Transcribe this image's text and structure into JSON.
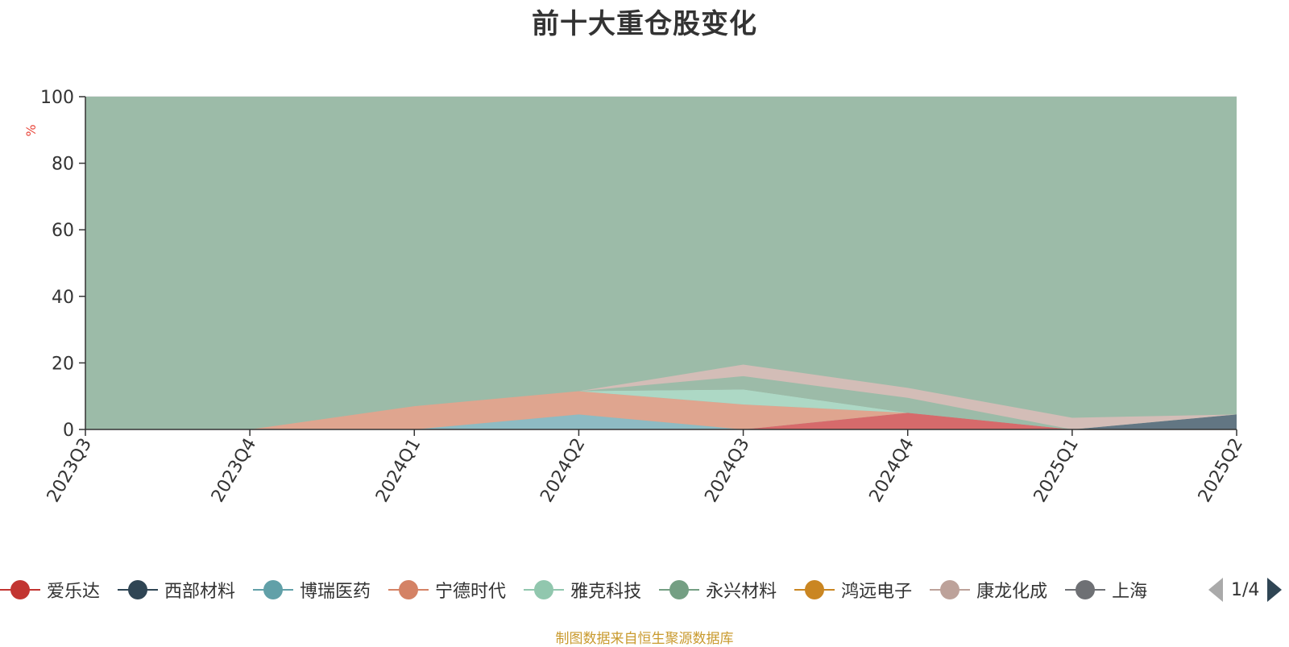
{
  "chart_data": {
    "type": "area",
    "title": "前十大重仓股变化",
    "ylabel": "%",
    "ylim": [
      0,
      100
    ],
    "yticks": [
      0,
      20,
      40,
      60,
      80,
      100
    ],
    "categories": [
      "2023Q3",
      "2023Q4",
      "2024Q1",
      "2024Q2",
      "2024Q3",
      "2024Q4",
      "2025Q1",
      "2025Q2"
    ],
    "grid": true,
    "legend_position": "bottom",
    "series": [
      {
        "name": "爱乐达",
        "color": "#d96567",
        "values": [
          0,
          0,
          0,
          0,
          0,
          5.0,
          0,
          0
        ]
      },
      {
        "name": "西部材料",
        "color": "#5f7281",
        "values": [
          0,
          0,
          0,
          0,
          0,
          0,
          0,
          4.5
        ]
      },
      {
        "name": "博瑞医药",
        "color": "#8dbbc4",
        "values": [
          0,
          0,
          0,
          4.5,
          0,
          0,
          0,
          0
        ]
      },
      {
        "name": "宁德时代",
        "color": "#e3a38d",
        "values": [
          0,
          0,
          7.0,
          7.0,
          7.5,
          0,
          0,
          0
        ]
      },
      {
        "name": "雅克科技",
        "color": "#aed9c6",
        "values": [
          0,
          0,
          0,
          0,
          4.5,
          0,
          0,
          0
        ]
      },
      {
        "name": "永兴材料",
        "color": "#9cbba8",
        "values": [
          0,
          0,
          0,
          0,
          4.0,
          4.5,
          0,
          0
        ]
      },
      {
        "name": "鸿远电子",
        "color": "#dcac58",
        "values": [
          0,
          0,
          0,
          0,
          0,
          0,
          0,
          0
        ]
      },
      {
        "name": "康龙化成",
        "color": "#d6bdb7",
        "values": [
          0,
          0,
          0,
          0,
          3.5,
          3.0,
          3.5,
          0
        ]
      },
      {
        "name": "上海",
        "color": "#999aa0",
        "values": [
          0,
          0,
          0,
          0,
          0,
          0,
          0,
          0
        ]
      }
    ]
  },
  "page": {
    "title": "前十大重仓股变化",
    "y_unit": "%",
    "source_note": "制图数据来自恒生聚源数据库"
  },
  "legend": {
    "items": [
      {
        "label": "爱乐达",
        "color": "#c23531"
      },
      {
        "label": "西部材料",
        "color": "#2f4554"
      },
      {
        "label": "博瑞医药",
        "color": "#61a0a8"
      },
      {
        "label": "宁德时代",
        "color": "#d48265"
      },
      {
        "label": "雅克科技",
        "color": "#91c7ae"
      },
      {
        "label": "永兴材料",
        "color": "#749f83"
      },
      {
        "label": "鸿远电子",
        "color": "#ca8622"
      },
      {
        "label": "康龙化成",
        "color": "#bda29a"
      },
      {
        "label": "上海",
        "color": "#6e7074"
      }
    ],
    "page_indicator": "1/4"
  }
}
